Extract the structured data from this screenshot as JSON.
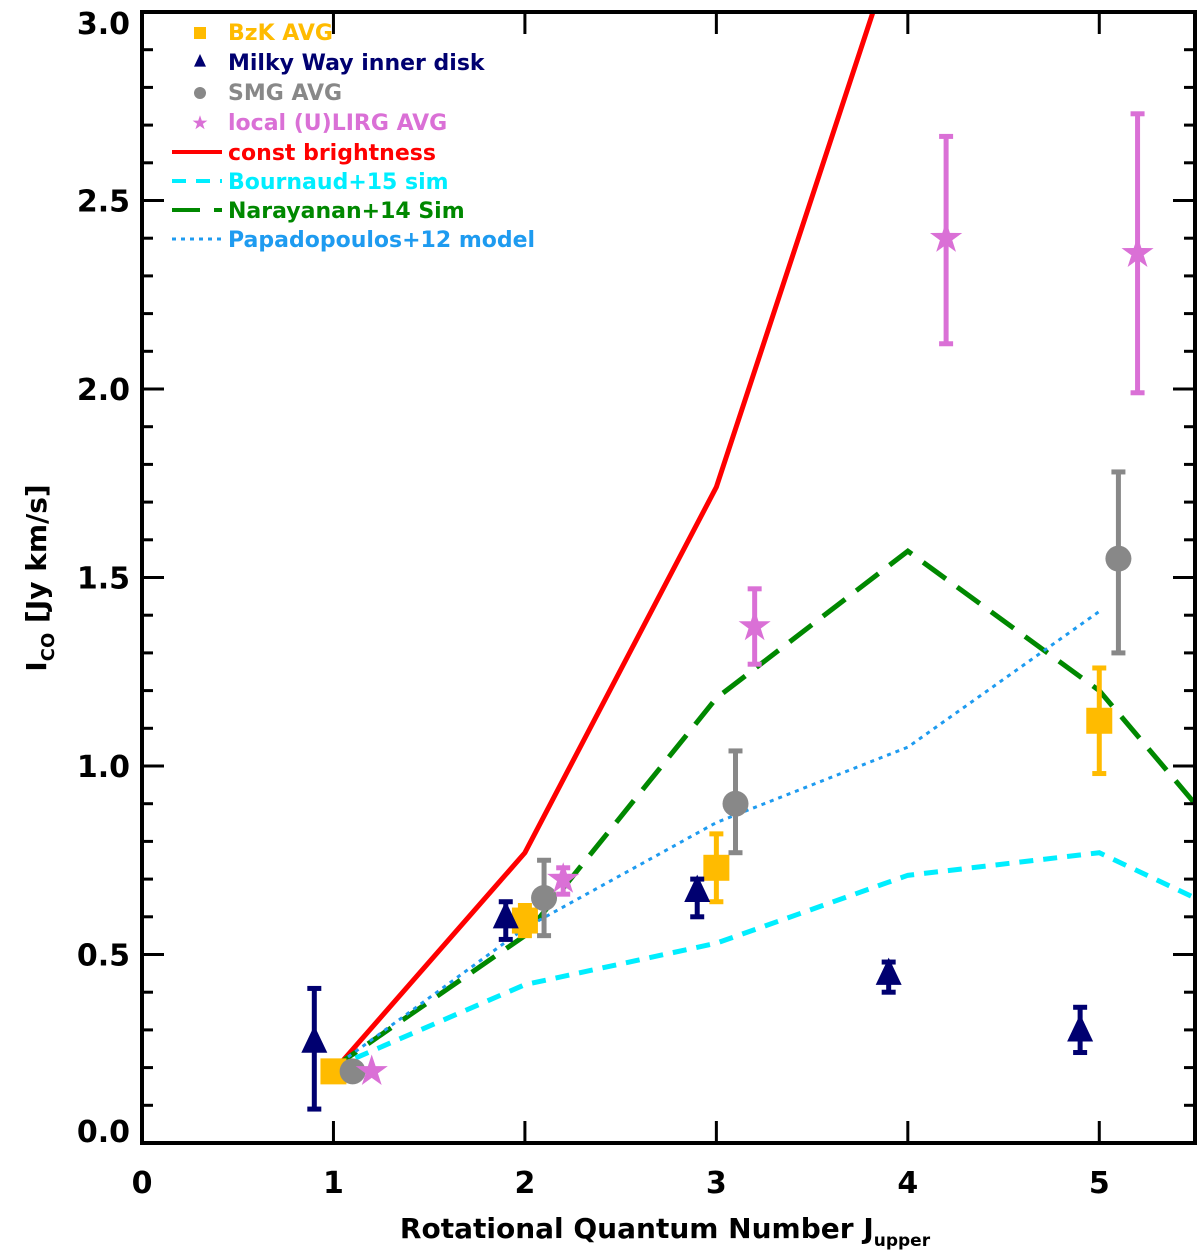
{
  "chart_data": {
    "type": "scatter",
    "title": "",
    "xlabel": {
      "main": "Rotational Quantum Number J",
      "sub": "upper"
    },
    "ylabel": {
      "main": "I",
      "sub": "CO",
      "rest": " [Jy km/s]"
    },
    "xlim": [
      0,
      5.5
    ],
    "ylim": [
      0,
      3.0
    ],
    "xticks": [
      "0",
      "1",
      "2",
      "3",
      "4",
      "5"
    ],
    "yticks": [
      "0.0",
      "0.5",
      "1.0",
      "1.5",
      "2.0",
      "2.5",
      "3.0"
    ],
    "legend_position": "top-left",
    "points_series": [
      {
        "name": "BzK AVG",
        "marker": "square",
        "color": "#ffbb00",
        "points": [
          {
            "x": 1.0,
            "y": 0.19,
            "lo": 0.19,
            "hi": 0.19
          },
          {
            "x": 2.0,
            "y": 0.59,
            "lo": 0.55,
            "hi": 0.63
          },
          {
            "x": 3.0,
            "y": 0.73,
            "lo": 0.64,
            "hi": 0.82
          },
          {
            "x": 5.0,
            "y": 1.12,
            "lo": 0.98,
            "hi": 1.26
          }
        ]
      },
      {
        "name": "Milky Way inner disk",
        "marker": "triangle",
        "color": "#000070",
        "points": [
          {
            "x": 0.9,
            "y": 0.26,
            "lo": 0.09,
            "hi": 0.41
          },
          {
            "x": 1.9,
            "y": 0.59,
            "lo": 0.54,
            "hi": 0.64
          },
          {
            "x": 2.9,
            "y": 0.66,
            "lo": 0.6,
            "hi": 0.7
          },
          {
            "x": 3.9,
            "y": 0.44,
            "lo": 0.4,
            "hi": 0.48
          },
          {
            "x": 4.9,
            "y": 0.29,
            "lo": 0.24,
            "hi": 0.36
          }
        ]
      },
      {
        "name": "SMG AVG",
        "marker": "circle",
        "color": "#888888",
        "points": [
          {
            "x": 1.1,
            "y": 0.19,
            "lo": 0.19,
            "hi": 0.19
          },
          {
            "x": 2.1,
            "y": 0.65,
            "lo": 0.55,
            "hi": 0.75
          },
          {
            "x": 3.1,
            "y": 0.9,
            "lo": 0.77,
            "hi": 1.04
          },
          {
            "x": 5.1,
            "y": 1.55,
            "lo": 1.3,
            "hi": 1.78
          }
        ]
      },
      {
        "name": "local (U)LIRG AVG",
        "marker": "star",
        "color": "#da70d6",
        "points": [
          {
            "x": 1.2,
            "y": 0.19,
            "lo": 0.19,
            "hi": 0.19
          },
          {
            "x": 2.2,
            "y": 0.7,
            "lo": 0.66,
            "hi": 0.73
          },
          {
            "x": 3.2,
            "y": 1.37,
            "lo": 1.27,
            "hi": 1.47
          },
          {
            "x": 4.2,
            "y": 2.4,
            "lo": 2.12,
            "hi": 2.67
          },
          {
            "x": 5.2,
            "y": 2.36,
            "lo": 1.99,
            "hi": 2.73
          }
        ]
      }
    ],
    "line_series": [
      {
        "name": "const brightness",
        "style": "solid",
        "color": "#ff0000",
        "x": [
          1,
          2,
          3,
          4
        ],
        "y": [
          0.19,
          0.77,
          1.74,
          3.28
        ]
      },
      {
        "name": "Bournaud+15 sim",
        "style": "dashed",
        "color": "#00eeff",
        "x": [
          1,
          2,
          3,
          4,
          5,
          5.5
        ],
        "y": [
          0.2,
          0.42,
          0.53,
          0.71,
          0.77,
          0.65
        ]
      },
      {
        "name": "Narayanan+14 Sim",
        "style": "longdash",
        "color": "#008800",
        "x": [
          1,
          2,
          3,
          4,
          5,
          5.5
        ],
        "y": [
          0.2,
          0.55,
          1.18,
          1.57,
          1.2,
          0.9
        ]
      },
      {
        "name": "Papadopoulos+12 model",
        "style": "dotted",
        "color": "#1e9bf0",
        "x": [
          1,
          2,
          3,
          4,
          5
        ],
        "y": [
          0.2,
          0.57,
          0.85,
          1.05,
          1.41
        ]
      }
    ]
  }
}
